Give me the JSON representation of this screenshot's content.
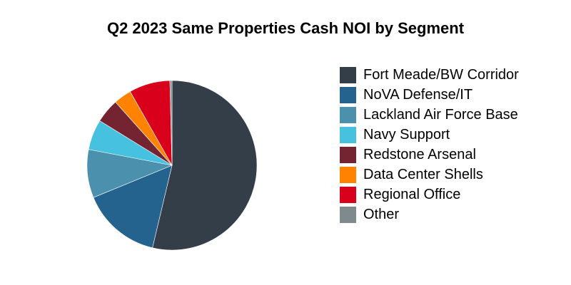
{
  "chart_data": {
    "type": "pie",
    "title": "Q2 2023 Same Properties Cash NOI by Segment",
    "legend_position": "right",
    "start_angle": "top, clockwise",
    "slices": [
      {
        "label": "Fort Meade/BW Corridor",
        "value": 53.7,
        "color": "#333e48"
      },
      {
        "label": "NoVA Defense/IT",
        "value": 15.1,
        "color": "#25638f"
      },
      {
        "label": "Lackland Air Force Base",
        "value": 9.2,
        "color": "#4b90ad"
      },
      {
        "label": "Navy Support",
        "value": 5.8,
        "color": "#47c1e0"
      },
      {
        "label": "Redstone Arsenal",
        "value": 4.6,
        "color": "#742330"
      },
      {
        "label": "Data Center Shells",
        "value": 3.4,
        "color": "#ff8200"
      },
      {
        "label": "Regional Office",
        "value": 7.8,
        "color": "#d9001b"
      },
      {
        "label": "Other",
        "value": 0.4,
        "color": "#7f8a8f"
      }
    ]
  }
}
